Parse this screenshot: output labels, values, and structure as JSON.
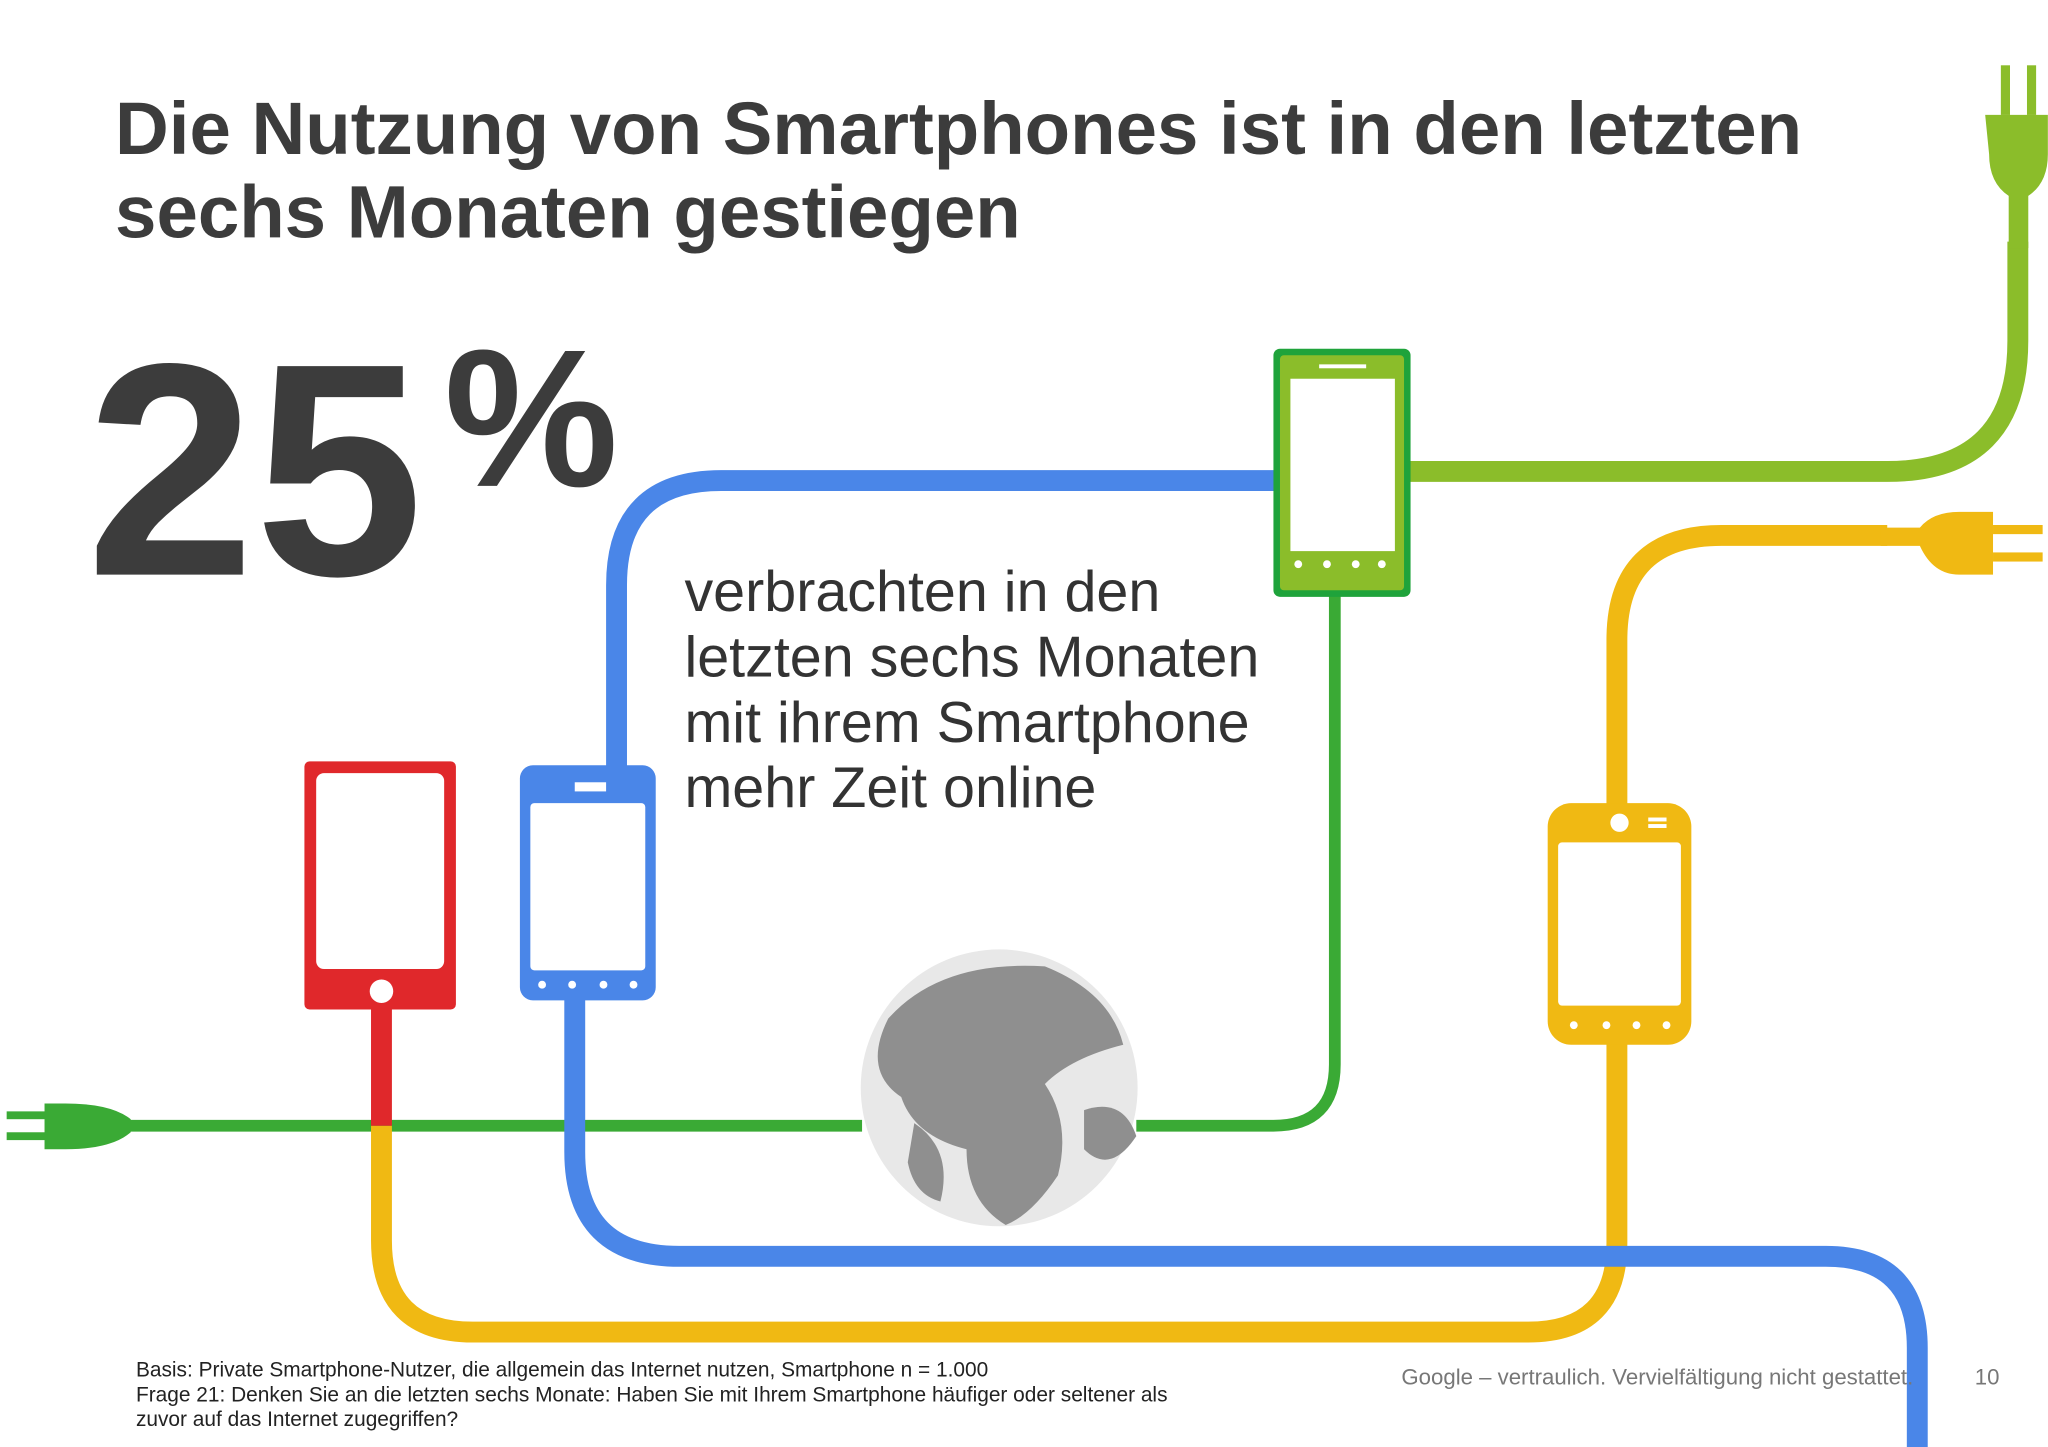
{
  "header": {
    "title": [
      "Die Nutzung von Smartphones ist in den letzten",
      "sechs Monaten gestiegen"
    ]
  },
  "stat": {
    "number": 25,
    "unit": "%",
    "description": [
      "verbrachten in den",
      "letzten sechs Monaten",
      "mit ihrem Smartphone",
      "mehr Zeit online"
    ]
  },
  "footer": {
    "basis": "Basis: Private Smartphone-Nutzer, die allgemein das Internet nutzen, Smartphone n = 1.000",
    "question": [
      "Frage 21: Denken Sie an die letzten sechs Monate: Haben Sie mit Ihrem Smartphone häufiger oder seltener als",
      "zuvor auf das Internet zugegriffen?"
    ],
    "confidential": "Google – vertraulich. Vervielfältigung nicht gestattet.",
    "page_number": "10"
  }
}
